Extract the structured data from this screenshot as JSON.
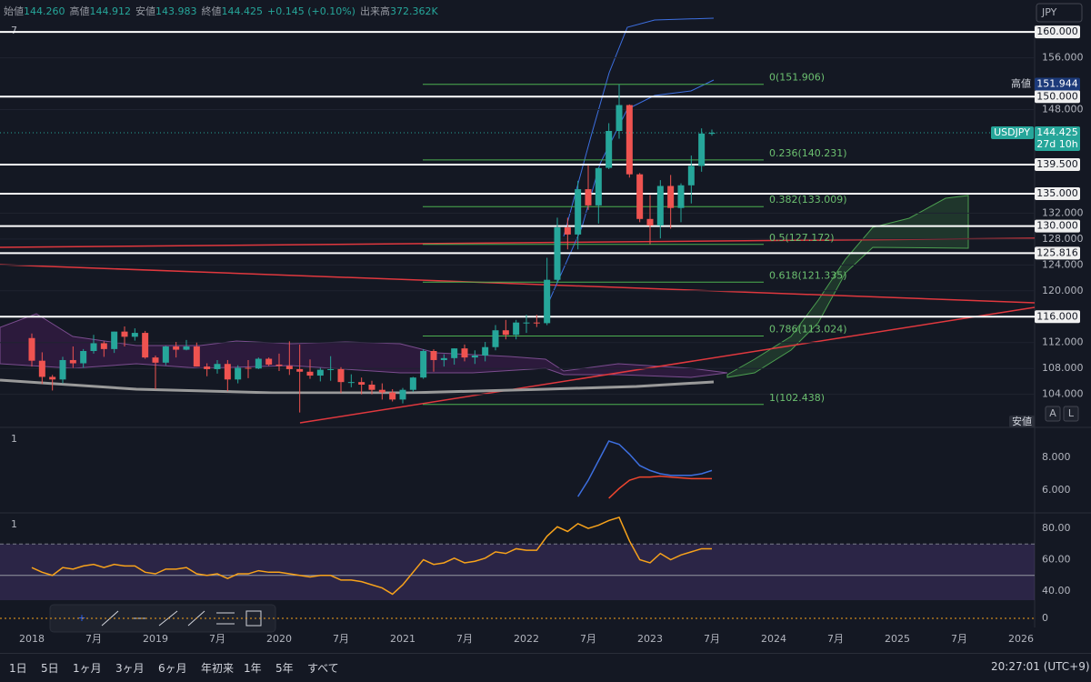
{
  "header": {
    "ohlc": [
      {
        "label": "始値",
        "value": "144.260"
      },
      {
        "label": "高値",
        "value": "144.912"
      },
      {
        "label": "安値",
        "value": "143.983"
      },
      {
        "label": "終値",
        "value": "144.425"
      }
    ],
    "change": "+0.145 (+0.10%)",
    "volume": {
      "label": "出来高",
      "value": "372.362K"
    }
  },
  "currency": "JPY",
  "panel_labels": [
    "7",
    "1",
    "1"
  ],
  "scale_buttons": [
    "A",
    "L"
  ],
  "ranges": [
    "1日",
    "5日",
    "1ヶ月",
    "3ヶ月",
    "6ヶ月",
    "年初来",
    "1年",
    "5年",
    "すべて"
  ],
  "clock": "20:27:01 (UTC+9)",
  "chart_data": [
    {
      "type": "candlestick",
      "symbol": "USDJPY",
      "countdown": "27d 10h",
      "up_color": "#26a69a",
      "down_color": "#ef5350",
      "last": {
        "value": 144.425,
        "label": "144.425"
      },
      "high": {
        "title": "高値",
        "value": 151.944,
        "label": "151.944"
      },
      "low_title": "安値",
      "ylim": [
        99.6,
        161
      ],
      "yticks": [
        {
          "value": 156,
          "label": "156.000"
        },
        {
          "value": 148,
          "label": "148.000"
        },
        {
          "value": 132,
          "label": "132.000"
        },
        {
          "value": 128,
          "label": "128.000"
        },
        {
          "value": 124,
          "label": "124.000"
        },
        {
          "value": 120,
          "label": "120.000"
        },
        {
          "value": 112,
          "label": "112.000"
        },
        {
          "value": 108,
          "label": "108.000"
        },
        {
          "value": 104,
          "label": "104.000"
        }
      ],
      "levels": [
        {
          "value": 160,
          "label": "160.000"
        },
        {
          "value": 150,
          "label": "150.000"
        },
        {
          "value": 139.5,
          "label": "139.500"
        },
        {
          "value": 135,
          "label": "135.000"
        },
        {
          "value": 130,
          "label": "130.000"
        },
        {
          "value": 125.816,
          "label": "125.816"
        },
        {
          "value": 116,
          "label": "116.000"
        }
      ],
      "fib": [
        {
          "value": 151.906,
          "label": "0(151.906)"
        },
        {
          "value": 140.231,
          "label": "0.236(140.231)"
        },
        {
          "value": 133.009,
          "label": "0.382(133.009)"
        },
        {
          "value": 127.172,
          "label": "0.5(127.172)"
        },
        {
          "value": 121.335,
          "label": "0.618(121.335)"
        },
        {
          "value": 113.024,
          "label": "0.786(113.024)"
        },
        {
          "value": 102.438,
          "label": "1(102.438)"
        }
      ],
      "volume_ticks": [
        0
      ],
      "xlabels": [
        "2018",
        "7月",
        "2019",
        "7月",
        "2020",
        "7月",
        "2021",
        "7月",
        "2022",
        "7月",
        "2023",
        "7月",
        "2024",
        "7月",
        "2025",
        "7月",
        "2026"
      ],
      "candles": [
        [
          112.7,
          113.4,
          108.3,
          109.2
        ],
        [
          109.2,
          110.5,
          105.6,
          106.7
        ],
        [
          106.7,
          107.0,
          104.6,
          106.3
        ],
        [
          106.3,
          109.8,
          105.7,
          109.3
        ],
        [
          109.3,
          111.4,
          108.1,
          108.8
        ],
        [
          108.8,
          111.0,
          108.1,
          110.7
        ],
        [
          110.7,
          113.2,
          110.3,
          111.9
        ],
        [
          111.9,
          112.2,
          109.8,
          111.0
        ],
        [
          111.0,
          113.7,
          110.4,
          113.7
        ],
        [
          113.7,
          114.5,
          111.4,
          112.9
        ],
        [
          112.9,
          114.2,
          112.3,
          113.5
        ],
        [
          113.5,
          113.8,
          109.5,
          109.7
        ],
        [
          109.7,
          110.0,
          104.8,
          108.9
        ],
        [
          108.9,
          111.5,
          108.5,
          111.4
        ],
        [
          111.4,
          112.1,
          109.7,
          110.9
        ],
        [
          110.9,
          112.4,
          110.8,
          111.4
        ],
        [
          111.4,
          112.0,
          108.3,
          108.3
        ],
        [
          108.3,
          108.8,
          106.8,
          107.9
        ],
        [
          107.9,
          109.3,
          107.2,
          108.7
        ],
        [
          108.7,
          109.3,
          104.5,
          106.3
        ],
        [
          106.3,
          108.5,
          105.7,
          108.1
        ],
        [
          108.1,
          109.3,
          106.5,
          108.0
        ],
        [
          108.0,
          109.7,
          107.9,
          109.5
        ],
        [
          109.5,
          109.7,
          108.4,
          108.6
        ],
        [
          108.6,
          110.3,
          107.6,
          108.4
        ],
        [
          108.4,
          112.2,
          107.0,
          107.9
        ],
        [
          107.9,
          111.7,
          101.2,
          107.5
        ],
        [
          107.5,
          109.4,
          106.4,
          106.9
        ],
        [
          106.9,
          108.1,
          106.0,
          107.8
        ],
        [
          107.8,
          109.9,
          106.1,
          107.9
        ],
        [
          107.9,
          108.2,
          104.2,
          105.9
        ],
        [
          105.9,
          107.1,
          105.1,
          105.9
        ],
        [
          105.9,
          106.6,
          104.0,
          105.5
        ],
        [
          105.5,
          106.1,
          104.0,
          104.7
        ],
        [
          104.7,
          105.7,
          103.2,
          104.3
        ],
        [
          104.3,
          104.8,
          102.9,
          103.2
        ],
        [
          103.2,
          105.0,
          102.6,
          104.7
        ],
        [
          104.7,
          106.7,
          104.4,
          106.6
        ],
        [
          106.6,
          110.97,
          106.4,
          110.7
        ],
        [
          110.7,
          110.97,
          107.5,
          109.3
        ],
        [
          109.3,
          110.2,
          108.3,
          109.6
        ],
        [
          109.6,
          111.1,
          108.6,
          111.1
        ],
        [
          111.1,
          111.7,
          109.1,
          109.7
        ],
        [
          109.7,
          110.8,
          108.7,
          110.0
        ],
        [
          110.0,
          112.1,
          109.1,
          111.3
        ],
        [
          111.3,
          114.7,
          110.8,
          113.9
        ],
        [
          113.9,
          115.5,
          112.5,
          113.2
        ],
        [
          113.2,
          115.5,
          112.5,
          115.1
        ],
        [
          115.1,
          116.3,
          113.5,
          115.1
        ],
        [
          115.1,
          116.3,
          114.4,
          115.0
        ],
        [
          115.0,
          125.1,
          114.7,
          121.7
        ],
        [
          121.7,
          131.3,
          121.3,
          129.8
        ],
        [
          129.8,
          131.3,
          126.4,
          128.7
        ],
        [
          128.7,
          137.0,
          126.4,
          135.7
        ],
        [
          135.7,
          139.4,
          132.5,
          133.2
        ],
        [
          133.2,
          139.1,
          130.4,
          138.96
        ],
        [
          139.0,
          145.9,
          138.8,
          144.7
        ],
        [
          144.7,
          151.9,
          143.5,
          148.7
        ],
        [
          148.7,
          148.8,
          137.5,
          138.0
        ],
        [
          138.0,
          138.2,
          130.6,
          131.1
        ],
        [
          131.1,
          134.8,
          127.2,
          130.1
        ],
        [
          130.1,
          137.1,
          128.1,
          136.2
        ],
        [
          136.2,
          137.9,
          129.6,
          132.8
        ],
        [
          132.8,
          136.6,
          130.6,
          136.3
        ],
        [
          136.3,
          140.9,
          133.5,
          139.3
        ],
        [
          139.3,
          145.1,
          138.4,
          144.3
        ],
        [
          144.26,
          144.912,
          143.983,
          144.425
        ]
      ]
    },
    {
      "type": "line",
      "ylim": [
        4.83,
        9.39
      ],
      "yticks": [
        {
          "value": 8,
          "label": "8.000"
        },
        {
          "value": 6,
          "label": "6.000"
        }
      ],
      "series": [
        {
          "color": "#3d6fe0",
          "values": [
            null,
            null,
            null,
            null,
            null,
            null,
            null,
            null,
            null,
            null,
            null,
            null,
            null,
            null,
            null,
            null,
            null,
            null,
            null,
            null,
            null,
            null,
            null,
            null,
            null,
            null,
            null,
            null,
            null,
            null,
            null,
            null,
            null,
            null,
            null,
            null,
            null,
            null,
            null,
            null,
            null,
            null,
            null,
            null,
            null,
            null,
            null,
            null,
            null,
            null,
            null,
            null,
            null,
            5.6,
            6.6,
            7.8,
            9.0,
            8.8,
            8.2,
            7.5,
            7.2,
            7.0,
            6.9,
            6.9,
            6.9,
            7.0,
            7.2
          ]
        },
        {
          "color": "#f0462e",
          "values": [
            null,
            null,
            null,
            null,
            null,
            null,
            null,
            null,
            null,
            null,
            null,
            null,
            null,
            null,
            null,
            null,
            null,
            null,
            null,
            null,
            null,
            null,
            null,
            null,
            null,
            null,
            null,
            null,
            null,
            null,
            null,
            null,
            null,
            null,
            null,
            null,
            null,
            null,
            null,
            null,
            null,
            null,
            null,
            null,
            null,
            null,
            null,
            null,
            null,
            null,
            null,
            null,
            null,
            null,
            null,
            null,
            5.5,
            6.1,
            6.6,
            6.8,
            6.8,
            6.85,
            6.8,
            6.75,
            6.7,
            6.7,
            6.7
          ]
        }
      ]
    },
    {
      "type": "rsi",
      "ylim": [
        34.2,
        86.4
      ],
      "yticks": [
        {
          "value": 80,
          "label": "80.00"
        },
        {
          "value": 60,
          "label": "60.00"
        },
        {
          "value": 40,
          "label": "40.00"
        }
      ],
      "upper": 70,
      "middle": 50,
      "lower": 30,
      "color": "#f7a21b",
      "values": [
        55,
        52,
        50,
        55,
        54,
        56,
        57,
        55,
        57,
        56,
        56,
        52,
        51,
        54,
        54,
        55,
        51,
        50,
        51,
        48,
        51,
        51,
        53,
        52,
        52,
        51,
        50,
        49,
        50,
        50,
        47,
        47,
        46,
        44,
        42,
        38,
        44,
        52,
        60,
        57,
        58,
        61,
        58,
        59,
        61,
        65,
        64,
        67,
        66,
        66,
        75,
        81,
        78,
        83,
        80,
        82,
        85,
        87,
        72,
        60,
        58,
        64,
        60,
        63,
        65,
        67,
        67
      ]
    }
  ]
}
